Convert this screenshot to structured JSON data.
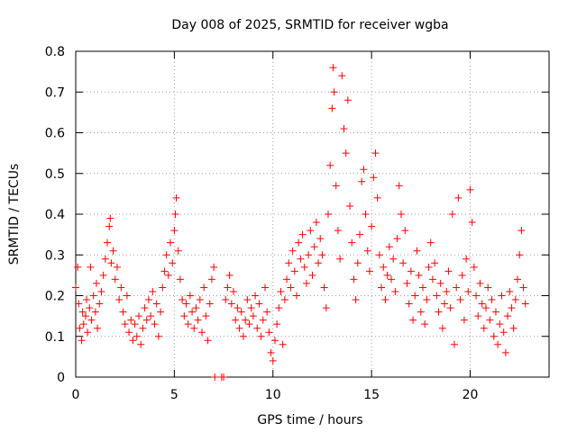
{
  "chart_data": {
    "type": "scatter",
    "title": "Day 008 of 2025, SRMTID for receiver wgba",
    "xlabel": "GPS time / hours",
    "ylabel": "SRMTID / TECUs",
    "xlim": [
      0,
      24
    ],
    "ylim": [
      0,
      0.8
    ],
    "xticks": [
      0,
      5,
      10,
      15,
      20
    ],
    "yticks": [
      0,
      0.1,
      0.2,
      0.3,
      0.4,
      0.5,
      0.6,
      0.7,
      0.8
    ],
    "xtick_labels": [
      "0",
      "5",
      "10",
      "15",
      "20"
    ],
    "ytick_labels": [
      "0",
      "0.1",
      "0.2",
      "0.3",
      "0.4",
      "0.5",
      "0.6",
      "0.7",
      "0.8"
    ],
    "grid": true,
    "marker": "plus",
    "color": "#ff0000",
    "series": [
      {
        "name": "SRMTID",
        "points": [
          [
            0.0,
            0.22
          ],
          [
            0.1,
            0.27
          ],
          [
            0.15,
            0.18
          ],
          [
            0.2,
            0.12
          ],
          [
            0.3,
            0.09
          ],
          [
            0.35,
            0.16
          ],
          [
            0.4,
            0.13
          ],
          [
            0.5,
            0.15
          ],
          [
            0.55,
            0.19
          ],
          [
            0.6,
            0.11
          ],
          [
            0.7,
            0.17
          ],
          [
            0.75,
            0.27
          ],
          [
            0.8,
            0.14
          ],
          [
            0.9,
            0.2
          ],
          [
            1.0,
            0.16
          ],
          [
            1.05,
            0.23
          ],
          [
            1.1,
            0.12
          ],
          [
            1.2,
            0.18
          ],
          [
            1.3,
            0.21
          ],
          [
            1.4,
            0.25
          ],
          [
            1.5,
            0.29
          ],
          [
            1.6,
            0.33
          ],
          [
            1.7,
            0.37
          ],
          [
            1.75,
            0.39
          ],
          [
            1.8,
            0.28
          ],
          [
            1.9,
            0.31
          ],
          [
            2.0,
            0.24
          ],
          [
            2.1,
            0.27
          ],
          [
            2.2,
            0.19
          ],
          [
            2.3,
            0.22
          ],
          [
            2.4,
            0.16
          ],
          [
            2.5,
            0.13
          ],
          [
            2.6,
            0.2
          ],
          [
            2.7,
            0.11
          ],
          [
            2.8,
            0.14
          ],
          [
            2.9,
            0.09
          ],
          [
            3.0,
            0.13
          ],
          [
            3.1,
            0.1
          ],
          [
            3.2,
            0.15
          ],
          [
            3.3,
            0.08
          ],
          [
            3.4,
            0.12
          ],
          [
            3.5,
            0.17
          ],
          [
            3.6,
            0.14
          ],
          [
            3.7,
            0.19
          ],
          [
            3.8,
            0.15
          ],
          [
            3.9,
            0.21
          ],
          [
            4.0,
            0.13
          ],
          [
            4.1,
            0.18
          ],
          [
            4.2,
            0.1
          ],
          [
            4.3,
            0.16
          ],
          [
            4.4,
            0.22
          ],
          [
            4.5,
            0.26
          ],
          [
            4.6,
            0.3
          ],
          [
            4.7,
            0.25
          ],
          [
            4.8,
            0.33
          ],
          [
            4.9,
            0.28
          ],
          [
            5.0,
            0.36
          ],
          [
            5.05,
            0.4
          ],
          [
            5.1,
            0.44
          ],
          [
            5.2,
            0.31
          ],
          [
            5.3,
            0.24
          ],
          [
            5.4,
            0.19
          ],
          [
            5.5,
            0.15
          ],
          [
            5.6,
            0.18
          ],
          [
            5.7,
            0.13
          ],
          [
            5.8,
            0.2
          ],
          [
            5.9,
            0.16
          ],
          [
            6.0,
            0.12
          ],
          [
            6.1,
            0.17
          ],
          [
            6.2,
            0.14
          ],
          [
            6.3,
            0.19
          ],
          [
            6.4,
            0.11
          ],
          [
            6.5,
            0.22
          ],
          [
            6.6,
            0.15
          ],
          [
            6.7,
            0.09
          ],
          [
            6.8,
            0.18
          ],
          [
            6.9,
            0.24
          ],
          [
            7.0,
            0.27
          ],
          [
            7.05,
            0.0
          ],
          [
            7.4,
            0.0
          ],
          [
            7.5,
            0.0
          ],
          [
            7.6,
            0.19
          ],
          [
            7.7,
            0.22
          ],
          [
            7.8,
            0.25
          ],
          [
            7.9,
            0.18
          ],
          [
            8.0,
            0.21
          ],
          [
            8.1,
            0.14
          ],
          [
            8.2,
            0.17
          ],
          [
            8.3,
            0.12
          ],
          [
            8.4,
            0.16
          ],
          [
            8.5,
            0.1
          ],
          [
            8.6,
            0.14
          ],
          [
            8.7,
            0.19
          ],
          [
            8.8,
            0.13
          ],
          [
            8.9,
            0.17
          ],
          [
            9.0,
            0.15
          ],
          [
            9.1,
            0.2
          ],
          [
            9.2,
            0.12
          ],
          [
            9.3,
            0.18
          ],
          [
            9.4,
            0.1
          ],
          [
            9.5,
            0.14
          ],
          [
            9.6,
            0.22
          ],
          [
            9.7,
            0.16
          ],
          [
            9.8,
            0.11
          ],
          [
            9.9,
            0.06
          ],
          [
            10.0,
            0.04
          ],
          [
            10.1,
            0.09
          ],
          [
            10.2,
            0.13
          ],
          [
            10.3,
            0.17
          ],
          [
            10.4,
            0.21
          ],
          [
            10.5,
            0.08
          ],
          [
            10.6,
            0.19
          ],
          [
            10.7,
            0.24
          ],
          [
            10.8,
            0.28
          ],
          [
            10.9,
            0.22
          ],
          [
            11.0,
            0.31
          ],
          [
            11.1,
            0.26
          ],
          [
            11.2,
            0.2
          ],
          [
            11.3,
            0.33
          ],
          [
            11.4,
            0.29
          ],
          [
            11.5,
            0.35
          ],
          [
            11.6,
            0.27
          ],
          [
            11.7,
            0.23
          ],
          [
            11.8,
            0.3
          ],
          [
            11.9,
            0.36
          ],
          [
            12.0,
            0.25
          ],
          [
            12.1,
            0.32
          ],
          [
            12.2,
            0.38
          ],
          [
            12.3,
            0.28
          ],
          [
            12.4,
            0.34
          ],
          [
            12.5,
            0.3
          ],
          [
            12.6,
            0.22
          ],
          [
            12.7,
            0.17
          ],
          [
            12.8,
            0.4
          ],
          [
            12.9,
            0.52
          ],
          [
            13.0,
            0.66
          ],
          [
            13.05,
            0.76
          ],
          [
            13.1,
            0.7
          ],
          [
            13.2,
            0.47
          ],
          [
            13.3,
            0.36
          ],
          [
            13.4,
            0.29
          ],
          [
            13.5,
            0.74
          ],
          [
            13.6,
            0.61
          ],
          [
            13.7,
            0.55
          ],
          [
            13.8,
            0.68
          ],
          [
            13.9,
            0.42
          ],
          [
            14.0,
            0.33
          ],
          [
            14.1,
            0.24
          ],
          [
            14.2,
            0.19
          ],
          [
            14.3,
            0.28
          ],
          [
            14.4,
            0.35
          ],
          [
            14.5,
            0.48
          ],
          [
            14.6,
            0.51
          ],
          [
            14.7,
            0.4
          ],
          [
            14.8,
            0.31
          ],
          [
            14.9,
            0.26
          ],
          [
            15.0,
            0.37
          ],
          [
            15.1,
            0.49
          ],
          [
            15.2,
            0.55
          ],
          [
            15.3,
            0.44
          ],
          [
            15.4,
            0.3
          ],
          [
            15.5,
            0.22
          ],
          [
            15.6,
            0.27
          ],
          [
            15.7,
            0.19
          ],
          [
            15.8,
            0.25
          ],
          [
            15.9,
            0.32
          ],
          [
            16.0,
            0.24
          ],
          [
            16.1,
            0.29
          ],
          [
            16.2,
            0.21
          ],
          [
            16.3,
            0.34
          ],
          [
            16.4,
            0.47
          ],
          [
            16.5,
            0.4
          ],
          [
            16.6,
            0.28
          ],
          [
            16.7,
            0.36
          ],
          [
            16.8,
            0.23
          ],
          [
            16.9,
            0.18
          ],
          [
            17.0,
            0.26
          ],
          [
            17.1,
            0.14
          ],
          [
            17.2,
            0.2
          ],
          [
            17.3,
            0.31
          ],
          [
            17.4,
            0.25
          ],
          [
            17.5,
            0.16
          ],
          [
            17.6,
            0.22
          ],
          [
            17.7,
            0.13
          ],
          [
            17.8,
            0.19
          ],
          [
            17.9,
            0.27
          ],
          [
            18.0,
            0.33
          ],
          [
            18.1,
            0.24
          ],
          [
            18.2,
            0.28
          ],
          [
            18.3,
            0.2
          ],
          [
            18.4,
            0.16
          ],
          [
            18.5,
            0.23
          ],
          [
            18.6,
            0.12
          ],
          [
            18.7,
            0.18
          ],
          [
            18.8,
            0.21
          ],
          [
            18.9,
            0.26
          ],
          [
            19.0,
            0.17
          ],
          [
            19.1,
            0.4
          ],
          [
            19.2,
            0.08
          ],
          [
            19.3,
            0.22
          ],
          [
            19.4,
            0.44
          ],
          [
            19.5,
            0.19
          ],
          [
            19.6,
            0.25
          ],
          [
            19.7,
            0.14
          ],
          [
            19.8,
            0.29
          ],
          [
            19.9,
            0.21
          ],
          [
            20.0,
            0.46
          ],
          [
            20.1,
            0.38
          ],
          [
            20.2,
            0.27
          ],
          [
            20.3,
            0.2
          ],
          [
            20.4,
            0.15
          ],
          [
            20.5,
            0.23
          ],
          [
            20.6,
            0.18
          ],
          [
            20.7,
            0.12
          ],
          [
            20.8,
            0.17
          ],
          [
            20.9,
            0.22
          ],
          [
            21.0,
            0.14
          ],
          [
            21.1,
            0.19
          ],
          [
            21.2,
            0.1
          ],
          [
            21.3,
            0.16
          ],
          [
            21.4,
            0.08
          ],
          [
            21.5,
            0.13
          ],
          [
            21.6,
            0.2
          ],
          [
            21.7,
            0.11
          ],
          [
            21.8,
            0.06
          ],
          [
            21.9,
            0.15
          ],
          [
            22.0,
            0.21
          ],
          [
            22.1,
            0.17
          ],
          [
            22.2,
            0.12
          ],
          [
            22.3,
            0.19
          ],
          [
            22.4,
            0.24
          ],
          [
            22.5,
            0.3
          ],
          [
            22.6,
            0.36
          ],
          [
            22.7,
            0.22
          ],
          [
            22.8,
            0.18
          ]
        ]
      }
    ]
  }
}
